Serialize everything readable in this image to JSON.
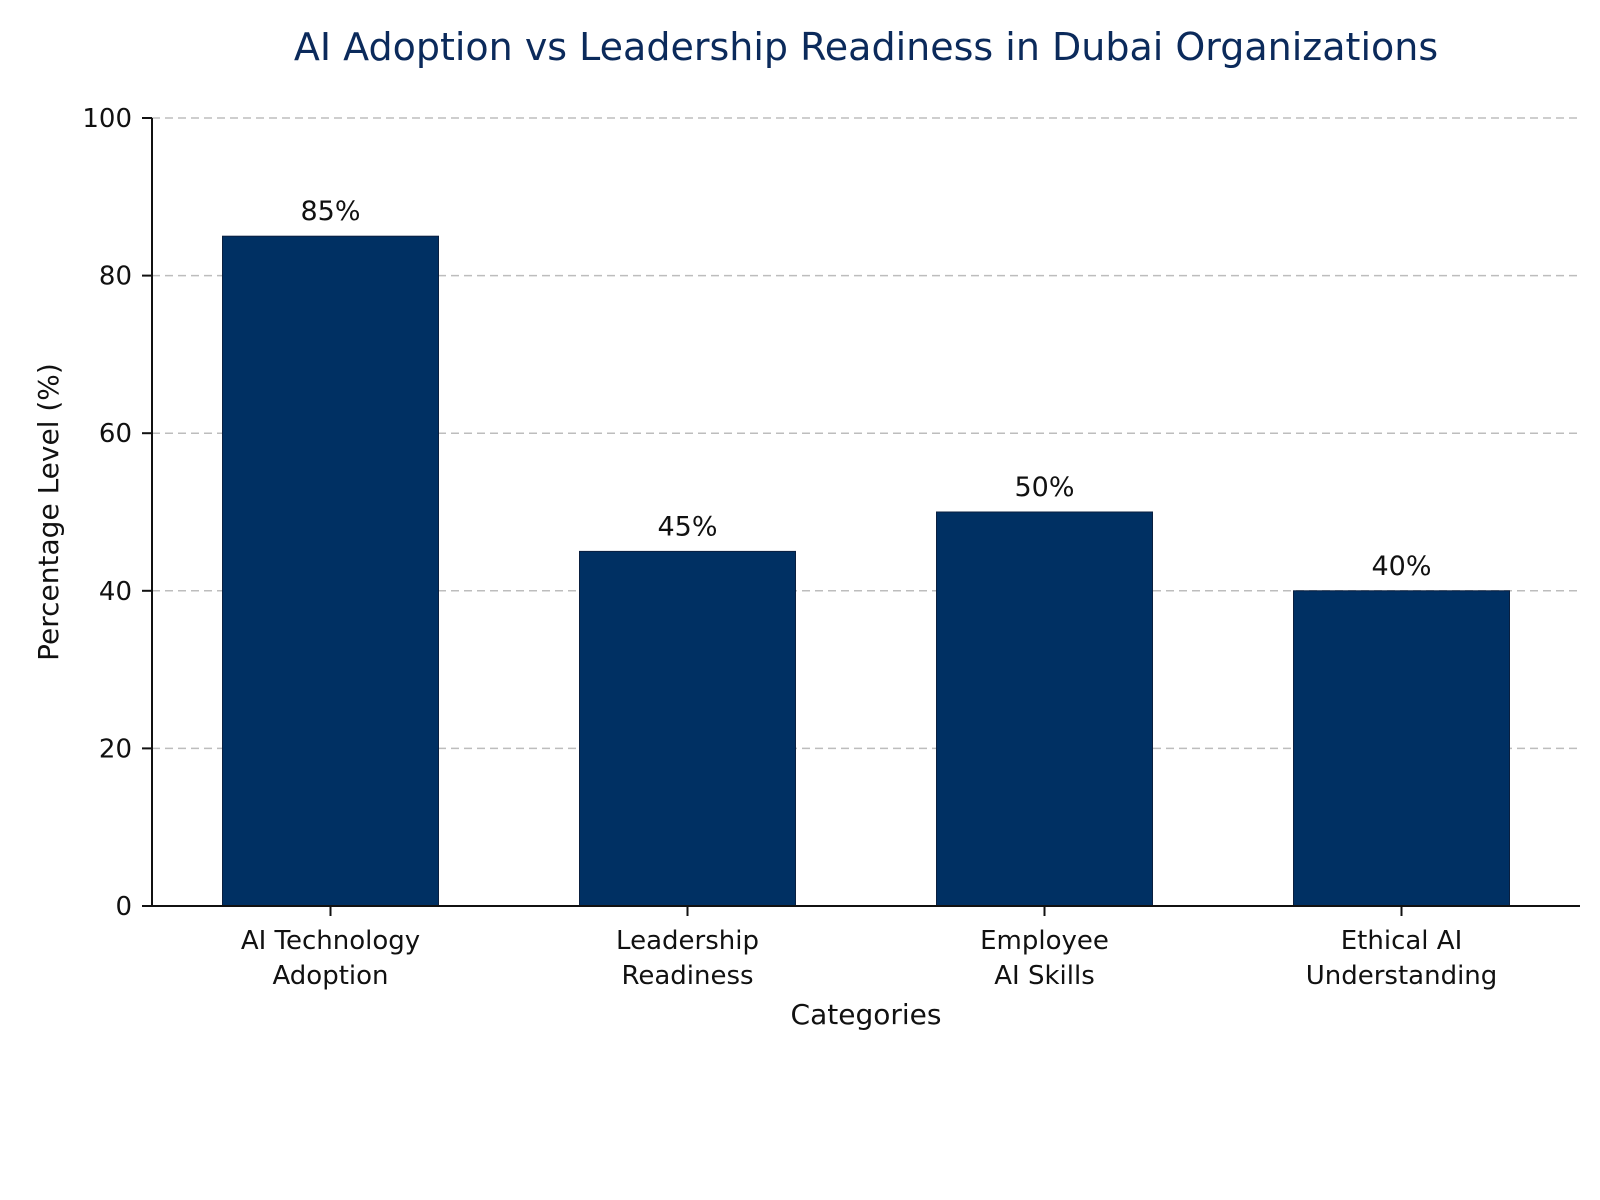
{
  "chart_data": {
    "type": "bar",
    "title": "AI Adoption vs Leadership Readiness in Dubai Organizations",
    "xlabel": "Categories",
    "ylabel": "Percentage Level (%)",
    "categories": [
      [
        "AI Technology",
        "Adoption"
      ],
      [
        "Leadership",
        "Readiness"
      ],
      [
        "Employee",
        "AI Skills"
      ],
      [
        "Ethical AI",
        "Understanding"
      ]
    ],
    "values": [
      85,
      45,
      50,
      40
    ],
    "data_labels": [
      "85%",
      "45%",
      "50%",
      "40%"
    ],
    "ylim": [
      0,
      100
    ],
    "yticks": [
      0,
      20,
      40,
      60,
      80,
      100
    ],
    "ytick_labels": [
      "0",
      "20",
      "40",
      "60",
      "80",
      "100"
    ],
    "grid": true,
    "bar_color": "#003063",
    "title_color": "#0b2a5b"
  }
}
